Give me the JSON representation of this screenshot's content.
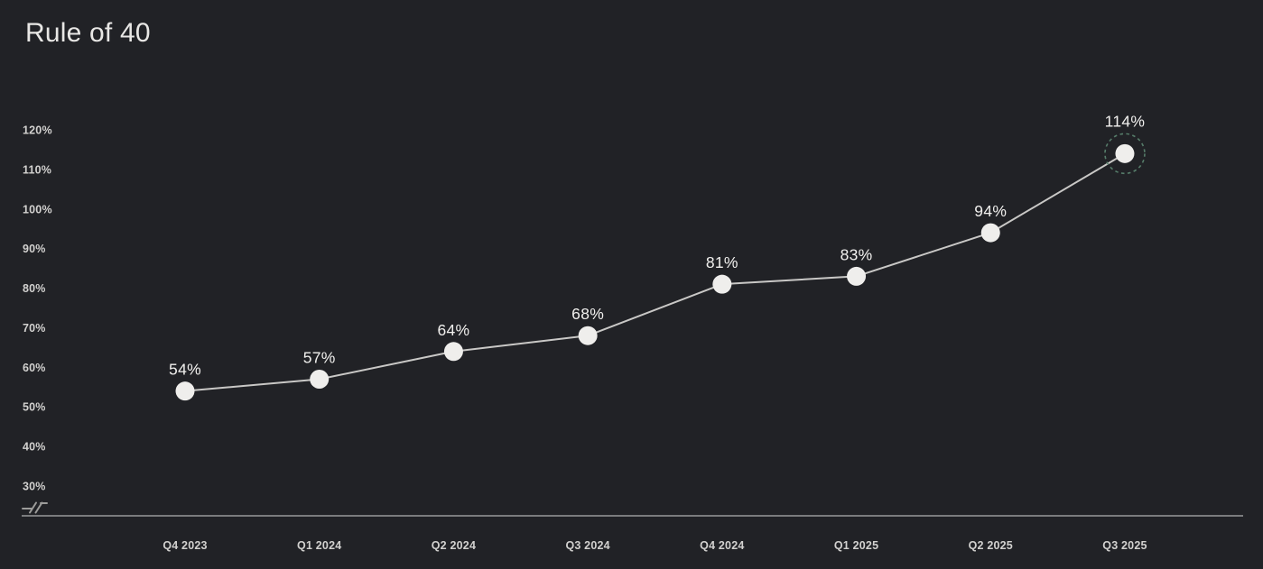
{
  "page": {
    "background": "#212226"
  },
  "chart_data": {
    "type": "line",
    "title": "Rule of 40",
    "categories": [
      "Q4 2023",
      "Q1 2024",
      "Q2 2024",
      "Q3 2024",
      "Q4 2024",
      "Q1 2025",
      "Q2 2025",
      "Q3 2025"
    ],
    "values": [
      54,
      57,
      64,
      68,
      81,
      83,
      94,
      114
    ],
    "point_labels": [
      "54%",
      "57%",
      "64%",
      "68%",
      "81%",
      "83%",
      "94%",
      "114%"
    ],
    "y_tick_labels": [
      "120%",
      "110%",
      "100%",
      "90%",
      "80%",
      "70%",
      "60%",
      "50%",
      "40%",
      "30%"
    ],
    "y_tick_values": [
      120,
      110,
      100,
      90,
      80,
      70,
      60,
      50,
      40,
      30
    ],
    "ylim": [
      30,
      120
    ],
    "xlabel": "",
    "ylabel": "",
    "grid": false,
    "legend": "none",
    "axis_break": true,
    "highlighted_index": 7,
    "colors": {
      "background": "#212226",
      "title_text": "#e8e7e5",
      "tick_text": "#d2d1cf",
      "point_label_text": "#f1f0ee",
      "line": "#c9c8c6",
      "point_fill": "#efeeec",
      "highlight_ring": "#567d6a",
      "axis_line": "#7b7c7e",
      "axis_break_glyph": "#9c9c9a"
    }
  }
}
